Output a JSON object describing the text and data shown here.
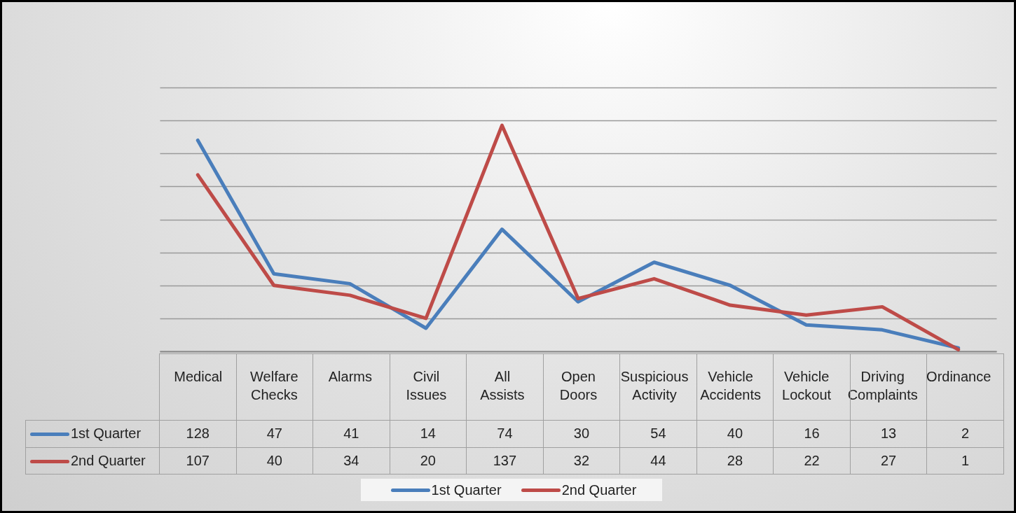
{
  "chart_data": {
    "type": "line",
    "categories": [
      "Medical",
      "Welfare Checks",
      "Alarms",
      "Civil Issues",
      "All Assists",
      "Open Doors",
      "Suspicious Activity",
      "Vehicle Accidents",
      "Vehicle Lockout",
      "Driving Complaints",
      "Ordinance"
    ],
    "series": [
      {
        "name": "1st Quarter",
        "color": "#4a7ebb",
        "values": [
          128,
          47,
          41,
          14,
          74,
          30,
          54,
          40,
          16,
          13,
          2
        ]
      },
      {
        "name": "2nd Quarter",
        "color": "#be4b48",
        "values": [
          107,
          40,
          34,
          20,
          137,
          32,
          44,
          28,
          22,
          27,
          1
        ]
      }
    ],
    "ylim": [
      0,
      160
    ],
    "yticks": [
      {
        "value": 0,
        "label": null
      },
      {
        "value": 20,
        "label": null
      },
      {
        "value": 40,
        "label": null
      },
      {
        "value": 60,
        "label": null
      },
      {
        "value": 80,
        "label": null
      },
      {
        "value": 100,
        "label": null
      },
      {
        "value": 120,
        "label": null
      },
      {
        "value": 140,
        "label": null
      },
      {
        "value": 160,
        "label": null
      }
    ],
    "grid": "y",
    "tick_labels": "x",
    "data_labels": true,
    "legend": "bottom",
    "line_style": "solid"
  }
}
